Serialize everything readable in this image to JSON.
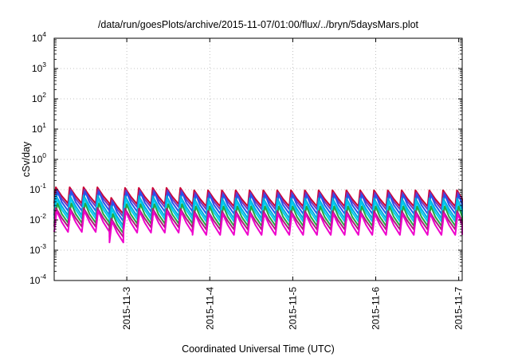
{
  "chart_data": {
    "type": "line",
    "title": "/data/run/goesPlots/archive/2015-11-07/01:00/flux/../bryn/5daysMars.plot",
    "xlabel": "Coordinated Universal Time (UTC)",
    "ylabel": "cSv/day",
    "y_scale": "log",
    "ylim": [
      0.0001,
      10000
    ],
    "y_ticks": [
      {
        "value": 0.0001,
        "base": "10",
        "exp": "-4"
      },
      {
        "value": 0.001,
        "base": "10",
        "exp": "-3"
      },
      {
        "value": 0.01,
        "base": "10",
        "exp": "-2"
      },
      {
        "value": 0.1,
        "base": "10",
        "exp": "-1"
      },
      {
        "value": 1,
        "base": "10",
        "exp": "0"
      },
      {
        "value": 10,
        "base": "10",
        "exp": "1"
      },
      {
        "value": 100,
        "base": "10",
        "exp": "2"
      },
      {
        "value": 1000,
        "base": "10",
        "exp": "3"
      },
      {
        "value": 10000,
        "base": "10",
        "exp": "4"
      }
    ],
    "xlim": [
      "2015-11-02T03:00",
      "2015-11-07T01:00"
    ],
    "x_ticks": [
      {
        "value": "2015-11-03T00:00",
        "label": "2015-11-3"
      },
      {
        "value": "2015-11-04T00:00",
        "label": "2015-11-4"
      },
      {
        "value": "2015-11-05T00:00",
        "label": "2015-11-5"
      },
      {
        "value": "2015-11-06T00:00",
        "label": "2015-11-6"
      },
      {
        "value": "2015-11-07T00:00",
        "label": "2015-11-7"
      }
    ],
    "grid": true,
    "legend": "none",
    "pattern": {
      "description": "repeating sawtooth: sharp rise then decay, about six cycles per day",
      "cycle_hours": 4,
      "phases": [
        {
          "from": "2015-11-02T03:00",
          "to": "2015-11-02T18:00",
          "peak_scale": 1.0
        },
        {
          "from": "2015-11-02T18:00",
          "to": "2015-11-02T21:00",
          "peak_scale": 0.45
        },
        {
          "from": "2015-11-02T21:00",
          "to": "2015-11-03T16:00",
          "peak_scale": 0.95
        },
        {
          "from": "2015-11-03T16:00",
          "to": "2015-11-07T01:00",
          "peak_scale": 0.8
        }
      ]
    },
    "series": [
      {
        "color": "#cc0033",
        "peak": 0.12,
        "trough": 0.035
      },
      {
        "color": "#7733bb",
        "peak": 0.1,
        "trough": 0.028
      },
      {
        "color": "#2255ee",
        "peak": 0.085,
        "trough": 0.02
      },
      {
        "color": "#00aadd",
        "peak": 0.065,
        "trough": 0.014
      },
      {
        "color": "#00ccee",
        "peak": 0.05,
        "trough": 0.011
      },
      {
        "color": "#22aa44",
        "peak": 0.035,
        "trough": 0.008
      },
      {
        "color": "#aa2277",
        "peak": 0.025,
        "trough": 0.006
      },
      {
        "color": "#ee00cc",
        "peak": 0.02,
        "trough": 0.004
      }
    ]
  }
}
